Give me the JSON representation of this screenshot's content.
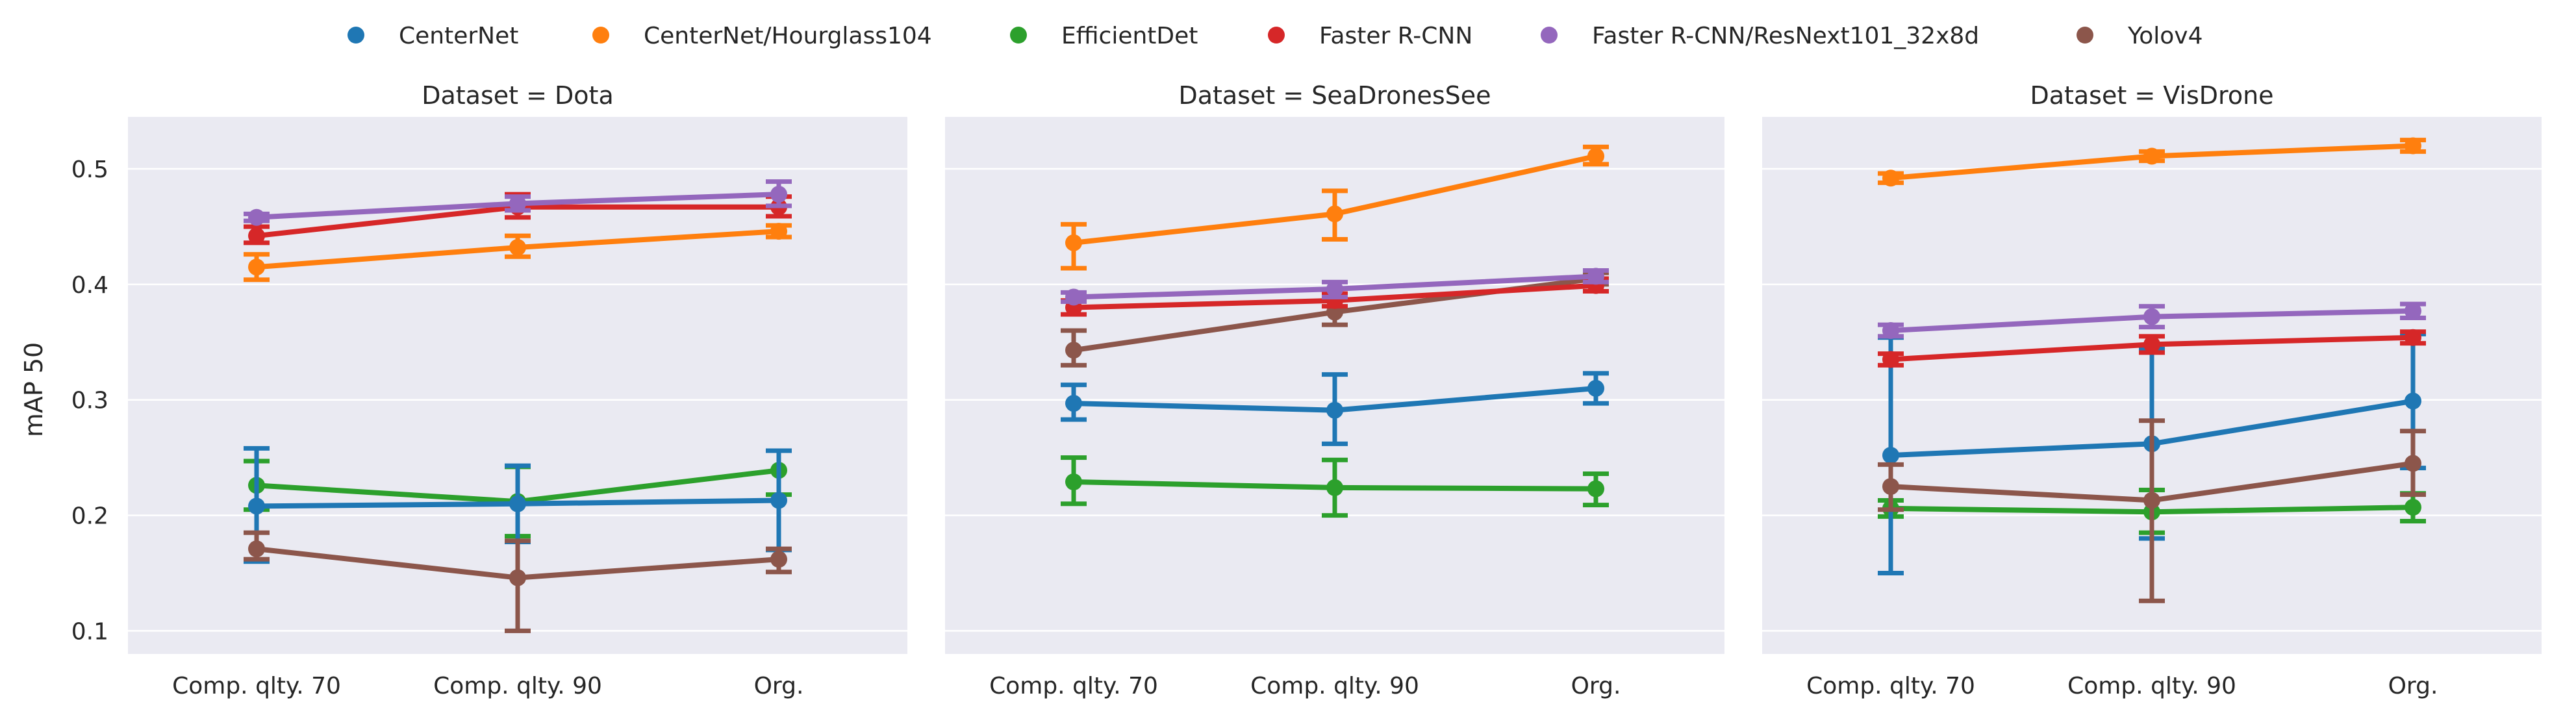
{
  "chart_data": {
    "type": "line",
    "ylabel": "mAP 50",
    "ylim": [
      0.08,
      0.545
    ],
    "yticks": [
      0.1,
      0.2,
      0.3,
      0.4,
      0.5
    ],
    "ytick_labels": [
      "0.1",
      "0.2",
      "0.3",
      "0.4",
      "0.5"
    ],
    "categories": [
      "Comp. qlty. 70",
      "Comp. qlty. 90",
      "Org."
    ],
    "grid": true,
    "legend_position": "top-center",
    "legend": [
      {
        "name": "CenterNet",
        "color": "#1f77b4"
      },
      {
        "name": "CenterNet/Hourglass104",
        "color": "#ff7f0e"
      },
      {
        "name": "EfficientDet",
        "color": "#2ca02c"
      },
      {
        "name": "Faster R-CNN",
        "color": "#d62728"
      },
      {
        "name": "Faster R-CNN/ResNext101_32x8d",
        "color": "#9467bd"
      },
      {
        "name": "Yolov4",
        "color": "#8c564b"
      }
    ],
    "panels": [
      {
        "title": "Dataset = Dota",
        "series": [
          {
            "name": "CenterNet/Hourglass104",
            "values": [
              0.415,
              0.432,
              0.446
            ],
            "err": [
              [
                0.404,
                0.426
              ],
              [
                0.424,
                0.442
              ],
              [
                0.441,
                0.451
              ]
            ]
          },
          {
            "name": "EfficientDet",
            "values": [
              0.226,
              0.212,
              0.239
            ],
            "err": [
              [
                0.205,
                0.247
              ],
              [
                0.182,
                0.242
              ],
              [
                0.218,
                0.256
              ]
            ]
          },
          {
            "name": "CenterNet",
            "values": [
              0.208,
              0.21,
              0.213
            ],
            "err": [
              [
                0.16,
                0.258
              ],
              [
                0.177,
                0.243
              ],
              [
                0.17,
                0.256
              ]
            ]
          },
          {
            "name": "Yolov4",
            "values": [
              0.171,
              0.146,
              0.162
            ],
            "err": [
              [
                0.162,
                0.185
              ],
              [
                0.1,
                0.178
              ],
              [
                0.151,
                0.171
              ]
            ]
          },
          {
            "name": "Faster R-CNN",
            "values": [
              0.442,
              0.467,
              0.467
            ],
            "err": [
              [
                0.436,
                0.45
              ],
              [
                0.458,
                0.478
              ],
              [
                0.459,
                0.476
              ]
            ]
          },
          {
            "name": "Faster R-CNN/ResNext101_32x8d",
            "values": [
              0.458,
              0.47,
              0.478
            ],
            "err": [
              [
                0.455,
                0.461
              ],
              [
                0.464,
                0.476
              ],
              [
                0.468,
                0.489
              ]
            ]
          }
        ]
      },
      {
        "title": "Dataset = SeaDronesSee",
        "series": [
          {
            "name": "CenterNet/Hourglass104",
            "values": [
              0.436,
              0.461,
              0.511
            ],
            "err": [
              [
                0.414,
                0.452
              ],
              [
                0.439,
                0.481
              ],
              [
                0.504,
                0.519
              ]
            ]
          },
          {
            "name": "EfficientDet",
            "values": [
              0.229,
              0.224,
              0.223
            ],
            "err": [
              [
                0.21,
                0.25
              ],
              [
                0.2,
                0.248
              ],
              [
                0.209,
                0.236
              ]
            ]
          },
          {
            "name": "CenterNet",
            "values": [
              0.297,
              0.291,
              0.31
            ],
            "err": [
              [
                0.283,
                0.313
              ],
              [
                0.262,
                0.322
              ],
              [
                0.297,
                0.323
              ]
            ]
          },
          {
            "name": "Yolov4",
            "values": [
              0.343,
              0.376,
              0.405
            ],
            "err": [
              [
                0.33,
                0.36
              ],
              [
                0.365,
                0.388
              ],
              [
                0.4,
                0.41
              ]
            ]
          },
          {
            "name": "Faster R-CNN",
            "values": [
              0.38,
              0.386,
              0.399
            ],
            "err": [
              [
                0.374,
                0.386
              ],
              [
                0.381,
                0.392
              ],
              [
                0.394,
                0.405
              ]
            ]
          },
          {
            "name": "Faster R-CNN/ResNext101_32x8d",
            "values": [
              0.389,
              0.396,
              0.407
            ],
            "err": [
              [
                0.385,
                0.393
              ],
              [
                0.389,
                0.402
              ],
              [
                0.402,
                0.412
              ]
            ]
          }
        ]
      },
      {
        "title": "Dataset = VisDrone",
        "series": [
          {
            "name": "CenterNet/Hourglass104",
            "values": [
              0.492,
              0.511,
              0.52
            ],
            "err": [
              [
                0.488,
                0.496
              ],
              [
                0.507,
                0.515
              ],
              [
                0.515,
                0.525
              ]
            ]
          },
          {
            "name": "EfficientDet",
            "values": [
              0.206,
              0.203,
              0.207
            ],
            "err": [
              [
                0.199,
                0.213
              ],
              [
                0.185,
                0.222
              ],
              [
                0.195,
                0.219
              ]
            ]
          },
          {
            "name": "CenterNet",
            "values": [
              0.252,
              0.262,
              0.299
            ],
            "err": [
              [
                0.15,
                0.354
              ],
              [
                0.18,
                0.344
              ],
              [
                0.241,
                0.357
              ]
            ]
          },
          {
            "name": "Yolov4",
            "values": [
              0.225,
              0.213,
              0.245
            ],
            "err": [
              [
                0.205,
                0.244
              ],
              [
                0.126,
                0.282
              ],
              [
                0.218,
                0.273
              ]
            ]
          },
          {
            "name": "Faster R-CNN",
            "values": [
              0.335,
              0.348,
              0.354
            ],
            "err": [
              [
                0.33,
                0.34
              ],
              [
                0.341,
                0.355
              ],
              [
                0.349,
                0.359
              ]
            ]
          },
          {
            "name": "Faster R-CNN/ResNext101_32x8d",
            "values": [
              0.36,
              0.372,
              0.377
            ],
            "err": [
              [
                0.355,
                0.365
              ],
              [
                0.363,
                0.381
              ],
              [
                0.371,
                0.383
              ]
            ]
          }
        ]
      }
    ]
  }
}
